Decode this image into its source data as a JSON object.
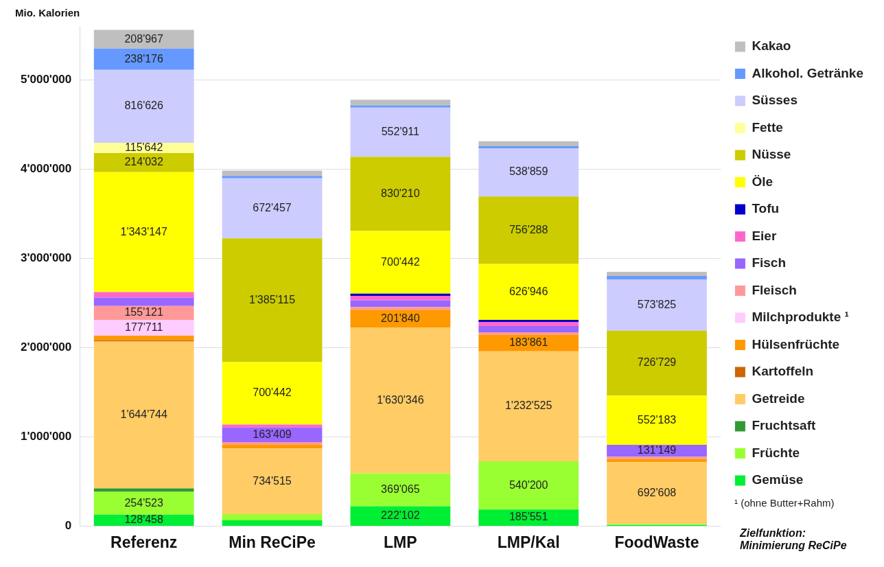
{
  "chart_data": {
    "type": "bar",
    "stacked": true,
    "ylabel": "Mio. Kalorien",
    "categories": [
      "Referenz",
      "Min ReCiPe",
      "LMP",
      "LMP/Kal",
      "FoodWaste"
    ],
    "ylim": [
      0,
      5600000
    ],
    "yticks": [
      {
        "value": 0,
        "label": "0"
      },
      {
        "value": 1000000,
        "label": "1'000'000"
      },
      {
        "value": 2000000,
        "label": "2'000'000"
      },
      {
        "value": 3000000,
        "label": "3'000'000"
      },
      {
        "value": 4000000,
        "label": "4'000'000"
      },
      {
        "value": 5000000,
        "label": "5'000'000"
      }
    ],
    "grid": "y",
    "legend": "right",
    "annotations": [
      "¹ (ohne Butter+Rahm)",
      "Zielfunktion: Minimierung ReCiPe"
    ],
    "series": [
      {
        "name": "Gemüse",
        "color": "#00ee33",
        "values": [
          128458,
          67000,
          222102,
          185551,
          12000
        ],
        "value_labels": [
          "128'458",
          null,
          "222'102",
          "185'551",
          null
        ]
      },
      {
        "name": "Früchte",
        "color": "#99ff33",
        "values": [
          254523,
          67000,
          369065,
          540200,
          12000
        ],
        "value_labels": [
          "254'523",
          null,
          "369'065",
          "540'200",
          null
        ]
      },
      {
        "name": "Fruchtsaft",
        "color": "#339933",
        "values": [
          40000,
          0,
          0,
          0,
          0
        ],
        "value_labels": [
          null,
          null,
          null,
          null,
          null
        ]
      },
      {
        "name": "Getreide",
        "color": "#ffcc66",
        "values": [
          1644744,
          734515,
          1630346,
          1232525,
          692608
        ],
        "value_labels": [
          "1'644'744",
          "734'515",
          "1'630'346",
          "1'232'525",
          "692'608"
        ]
      },
      {
        "name": "Kartoffeln",
        "color": "#cc6600",
        "values": [
          15000,
          0,
          0,
          0,
          0
        ],
        "value_labels": [
          null,
          null,
          null,
          null,
          null
        ]
      },
      {
        "name": "Hülsenfrüchte",
        "color": "#ff9900",
        "values": [
          50000,
          43000,
          201840,
          183861,
          36000
        ],
        "value_labels": [
          null,
          null,
          "201'840",
          "183'861",
          null
        ]
      },
      {
        "name": "Milchprodukte ¹",
        "color": "#ffccff",
        "values": [
          177711,
          0,
          0,
          0,
          0
        ],
        "value_labels": [
          "177'711",
          null,
          null,
          null,
          null
        ]
      },
      {
        "name": "Fleisch",
        "color": "#ff9999",
        "values": [
          155121,
          30000,
          31000,
          29000,
          26000
        ],
        "value_labels": [
          "155'121",
          null,
          null,
          null,
          null
        ]
      },
      {
        "name": "Fisch",
        "color": "#9966ff",
        "values": [
          93000,
          163409,
          75000,
          69000,
          131149
        ],
        "value_labels": [
          null,
          "163'409",
          null,
          null,
          "131'149"
        ]
      },
      {
        "name": "Eier",
        "color": "#ff66cc",
        "values": [
          62000,
          32000,
          50000,
          46000,
          0
        ],
        "value_labels": [
          null,
          null,
          null,
          null,
          null
        ]
      },
      {
        "name": "Tofu",
        "color": "#0000cc",
        "values": [
          0,
          0,
          25000,
          23000,
          0
        ],
        "value_labels": [
          null,
          null,
          null,
          null,
          null
        ]
      },
      {
        "name": "Öle",
        "color": "#ffff00",
        "values": [
          1343147,
          700442,
          700442,
          626946,
          552183
        ],
        "value_labels": [
          "1'343'147",
          "700'442",
          "700'442",
          "626'946",
          "552'183"
        ]
      },
      {
        "name": "Nüsse",
        "color": "#cccc00",
        "values": [
          214032,
          1385115,
          830210,
          756288,
          726729
        ],
        "value_labels": [
          "214'032",
          "1'385'115",
          "830'210",
          "756'288",
          "726'729"
        ]
      },
      {
        "name": "Fette",
        "color": "#ffff99",
        "values": [
          115642,
          0,
          0,
          0,
          0
        ],
        "value_labels": [
          "115'642",
          null,
          null,
          null,
          null
        ]
      },
      {
        "name": "Süsses",
        "color": "#ccccff",
        "values": [
          816626,
          672457,
          552911,
          538859,
          573825
        ],
        "value_labels": [
          "816'626",
          "672'457",
          "552'911",
          "538'859",
          "573'825"
        ]
      },
      {
        "name": "Alkohol. Getränke",
        "color": "#6699ff",
        "values": [
          238176,
          27000,
          25000,
          23000,
          39000
        ],
        "value_labels": [
          "238'176",
          null,
          null,
          null,
          null
        ]
      },
      {
        "name": "Kakao",
        "color": "#bfbfbf",
        "values": [
          208967,
          59000,
          62000,
          57000,
          47000
        ],
        "value_labels": [
          "208'967",
          null,
          null,
          null,
          null
        ]
      }
    ]
  }
}
